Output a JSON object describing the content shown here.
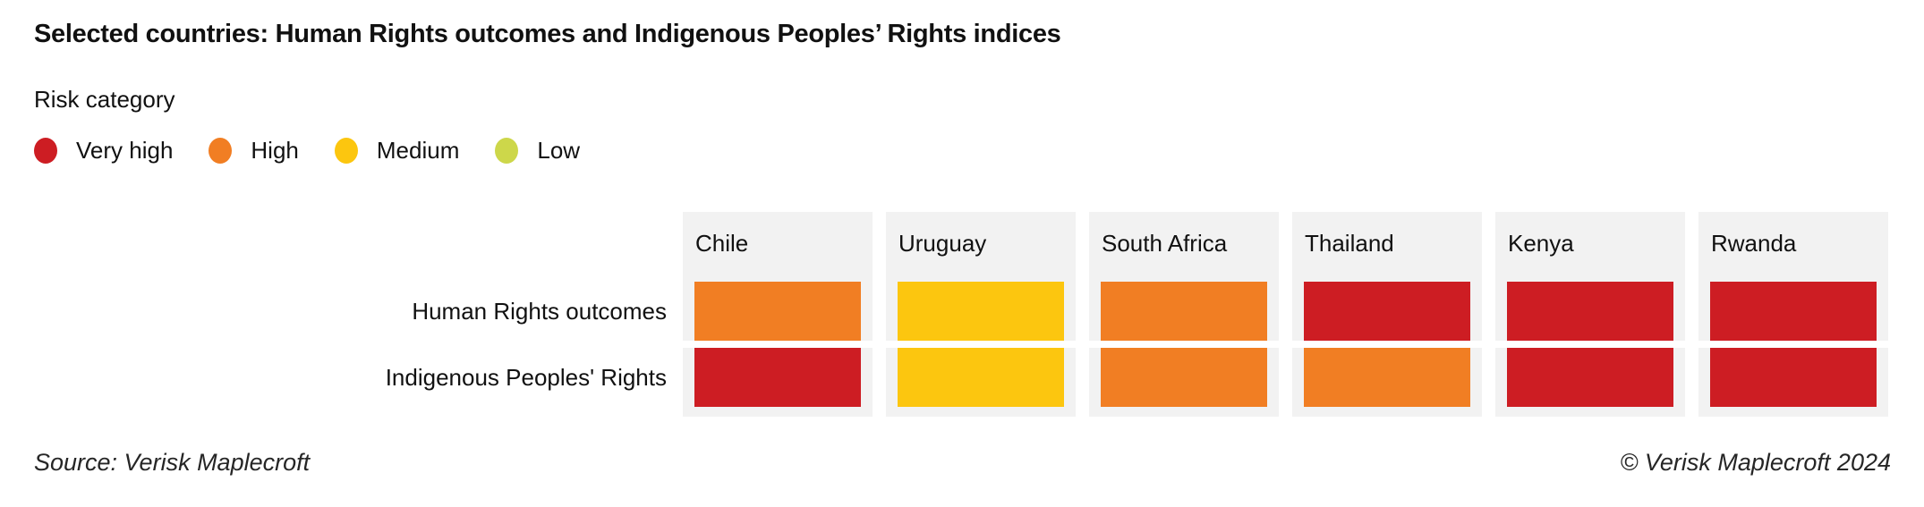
{
  "title": "Selected countries: Human Rights outcomes and Indigenous Peoples’ Rights indices",
  "legend": {
    "title": "Risk category",
    "items": [
      {
        "label": "Very high",
        "color": "#cd1d23"
      },
      {
        "label": "High",
        "color": "#f17e23"
      },
      {
        "label": "Medium",
        "color": "#fcc60f"
      },
      {
        "label": "Low",
        "color": "#cdd74a"
      }
    ]
  },
  "risk_colors": {
    "Very high": "#cd1d23",
    "High": "#f17e23",
    "Medium": "#fcc60f",
    "Low": "#cdd74a"
  },
  "card_background": "#f2f2f2",
  "matrix": {
    "row_labels": [
      "Human Rights outcomes",
      "Indigenous Peoples' Rights"
    ],
    "columns": [
      {
        "country": "Chile",
        "values": [
          "High",
          "Very high"
        ]
      },
      {
        "country": "Uruguay",
        "values": [
          "Medium",
          "Medium"
        ]
      },
      {
        "country": "South Africa",
        "values": [
          "High",
          "High"
        ]
      },
      {
        "country": "Thailand",
        "values": [
          "Very high",
          "High"
        ]
      },
      {
        "country": "Kenya",
        "values": [
          "Very high",
          "Very high"
        ]
      },
      {
        "country": "Rwanda",
        "values": [
          "Very high",
          "Very high"
        ]
      }
    ]
  },
  "footer": {
    "source": "Source: Verisk Maplecroft",
    "copyright": "© Verisk Maplecroft 2024"
  },
  "chart_data": {
    "type": "heatmap",
    "title": "Selected countries: Human Rights outcomes and Indigenous Peoples’ Rights indices",
    "categories": [
      "Chile",
      "Uruguay",
      "South Africa",
      "Thailand",
      "Kenya",
      "Rwanda"
    ],
    "series": [
      {
        "name": "Human Rights outcomes",
        "values": [
          "High",
          "Medium",
          "High",
          "Very high",
          "Very high",
          "Very high"
        ]
      },
      {
        "name": "Indigenous Peoples' Rights",
        "values": [
          "Very high",
          "Medium",
          "High",
          "High",
          "Very high",
          "Very high"
        ]
      }
    ],
    "legend": {
      "title": "Risk category",
      "entries": [
        "Very high",
        "High",
        "Medium",
        "Low"
      ],
      "position": "top-left"
    },
    "color_scale": {
      "Very high": "#cd1d23",
      "High": "#f17e23",
      "Medium": "#fcc60f",
      "Low": "#cdd74a"
    },
    "grid": false,
    "source": "Verisk Maplecroft"
  }
}
